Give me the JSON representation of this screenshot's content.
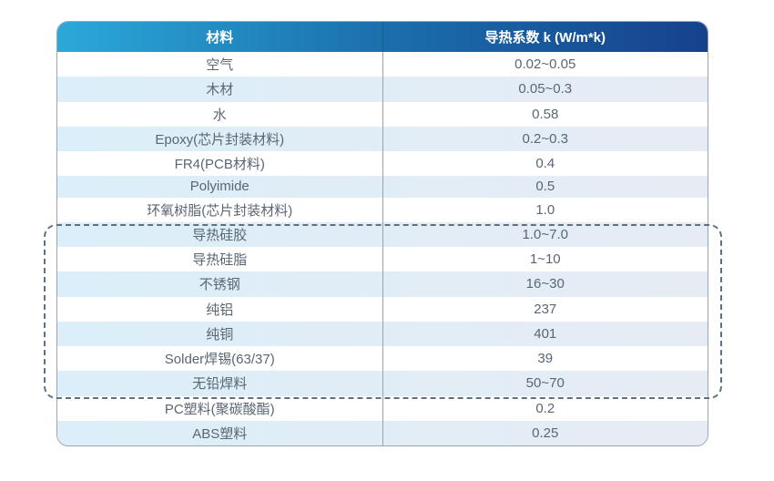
{
  "table": {
    "columns": [
      {
        "label": "材料"
      },
      {
        "label": "导热系数 k (W/m*k)"
      }
    ],
    "rows": [
      {
        "material": "空气",
        "value": "0.02~0.05",
        "highlighted": false
      },
      {
        "material": "木材",
        "value": "0.05~0.3",
        "highlighted": false
      },
      {
        "material": "水",
        "value": "0.58",
        "highlighted": false
      },
      {
        "material": "Epoxy(芯片封装材料)",
        "value": "0.2~0.3",
        "highlighted": false
      },
      {
        "material": "FR4(PCB材料)",
        "value": "0.4",
        "highlighted": false
      },
      {
        "material": "Polyimide",
        "value": "0.5",
        "highlighted": false
      },
      {
        "material": "环氧树脂(芯片封装材料)",
        "value": "1.0",
        "highlighted": false
      },
      {
        "material": "导热硅胶",
        "value": "1.0~7.0",
        "highlighted": true
      },
      {
        "material": "导热硅脂",
        "value": "1~10",
        "highlighted": true
      },
      {
        "material": "不锈钢",
        "value": "16~30",
        "highlighted": true
      },
      {
        "material": "纯铝",
        "value": "237",
        "highlighted": true
      },
      {
        "material": "纯铜",
        "value": "401",
        "highlighted": true
      },
      {
        "material": "Solder焊锡(63/37)",
        "value": "39",
        "highlighted": true
      },
      {
        "material": "无铅焊料",
        "value": "50~70",
        "highlighted": true
      },
      {
        "material": "PC塑料(聚碳酸酯)",
        "value": "0.2",
        "highlighted": false
      },
      {
        "material": "ABS塑料",
        "value": "0.25",
        "highlighted": false
      }
    ]
  },
  "chart_data": {
    "type": "table",
    "title": "",
    "columns": [
      "材料",
      "导热系数 k (W/m*k)"
    ],
    "rows": [
      [
        "空气",
        "0.02~0.05"
      ],
      [
        "木材",
        "0.05~0.3"
      ],
      [
        "水",
        "0.58"
      ],
      [
        "Epoxy(芯片封装材料)",
        "0.2~0.3"
      ],
      [
        "FR4(PCB材料)",
        "0.4"
      ],
      [
        "Polyimide",
        "0.5"
      ],
      [
        "环氧树脂(芯片封装材料)",
        "1.0"
      ],
      [
        "导热硅胶",
        "1.0~7.0"
      ],
      [
        "导热硅脂",
        "1~10"
      ],
      [
        "不锈钢",
        "16~30"
      ],
      [
        "纯铝",
        "237"
      ],
      [
        "纯铜",
        "401"
      ],
      [
        "Solder焊锡(63/37)",
        "39"
      ],
      [
        "无铅焊料",
        "50~70"
      ],
      [
        "PC塑料(聚碳酸酯)",
        "0.2"
      ],
      [
        "ABS塑料",
        "0.25"
      ]
    ],
    "highlighted_rows": [
      "导热硅胶",
      "导热硅脂",
      "不锈钢",
      "纯铝",
      "纯铜",
      "Solder焊锡(63/37)",
      "无铅焊料"
    ],
    "layout": {
      "stripe_pattern": "even-rows-striped",
      "highlight_style": "dashed-rounded-box"
    }
  },
  "colors": {
    "header_gradient_start": "#2BA8D9",
    "header_gradient_end": "#16418C",
    "stripe_start": "#DBEEF9",
    "stripe_end": "#E7ECF4",
    "cell_text": "#5A6673",
    "outer_border": "#9AA5B0",
    "column_divider": "#96A1AC",
    "dashed_box": "#5F7080",
    "header_text": "#FFFFFF"
  }
}
